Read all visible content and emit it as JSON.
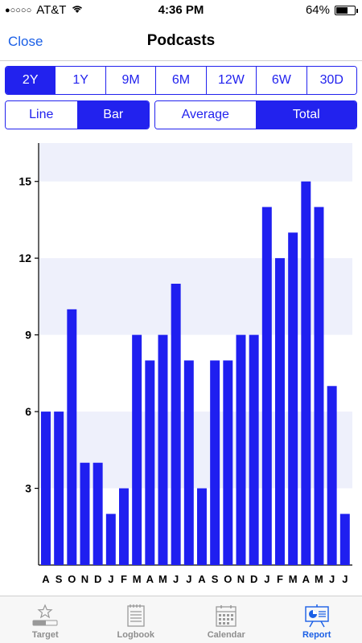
{
  "status": {
    "carrier": "AT&T",
    "time": "4:36 PM",
    "battery": "64%",
    "battery_level": 0.64,
    "signal_dots": "●○○○○"
  },
  "nav": {
    "close_label": "Close",
    "title": "Podcasts"
  },
  "range_tabs": [
    {
      "label": "2Y",
      "active": true
    },
    {
      "label": "1Y",
      "active": false
    },
    {
      "label": "9M",
      "active": false
    },
    {
      "label": "6M",
      "active": false
    },
    {
      "label": "12W",
      "active": false
    },
    {
      "label": "6W",
      "active": false
    },
    {
      "label": "30D",
      "active": false
    }
  ],
  "type_toggle": [
    {
      "label": "Line",
      "active": false
    },
    {
      "label": "Bar",
      "active": true
    }
  ],
  "mode_toggle": [
    {
      "label": "Average",
      "active": false
    },
    {
      "label": "Total",
      "active": true
    }
  ],
  "chart_data": {
    "type": "bar",
    "categories": [
      "A",
      "S",
      "O",
      "N",
      "D",
      "J",
      "F",
      "M",
      "A",
      "M",
      "J",
      "J",
      "A",
      "S",
      "O",
      "N",
      "D",
      "J",
      "F",
      "M",
      "A",
      "M",
      "J",
      "J"
    ],
    "values": [
      6,
      6,
      10,
      4,
      4,
      2,
      3,
      9,
      8,
      9,
      11,
      8,
      3,
      8,
      8,
      9,
      9,
      14,
      12,
      13,
      15,
      14,
      7,
      2
    ],
    "yticks": [
      3,
      6,
      9,
      12,
      15
    ],
    "ylim": [
      0,
      16.5
    ],
    "bar_color": "#1f1ff0",
    "band_color": "#eef0fb",
    "grid": false
  },
  "tabs": [
    {
      "label": "Target",
      "icon": "target-icon",
      "active": false
    },
    {
      "label": "Logbook",
      "icon": "logbook-icon",
      "active": false
    },
    {
      "label": "Calendar",
      "icon": "calendar-icon",
      "active": false
    },
    {
      "label": "Report",
      "icon": "report-icon",
      "active": true
    }
  ],
  "colors": {
    "accent": "#2222ee",
    "link": "#1a5fe6"
  }
}
